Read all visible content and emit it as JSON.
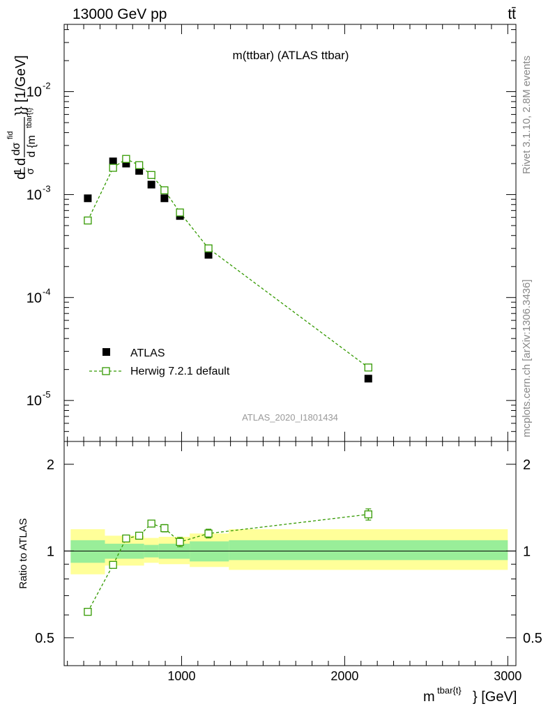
{
  "header": {
    "left": "13000 GeV pp",
    "right": "tt̄"
  },
  "side_text": {
    "top": "Rivet 3.1.10,  2.8M events",
    "bottom": "mcplots.cern.ch [arXiv:1306.3436]"
  },
  "analysis_id": "ATLAS_2020_I1801434",
  "chart_data": [
    {
      "panel": "main",
      "type": "scatter",
      "title": "m(ttbar) (ATLAS ttbar)",
      "ylabel": "1/σ dσ^fid/d{m^tbar{t}} [1/GeV]",
      "ylabel_parts": {
        "pre": "d",
        "one": "1",
        "sigma": "σ",
        "d2": "d",
        "dsigma": "dσ",
        "fid": "fid",
        "dm": "d {m",
        "sub": "tbar{t}",
        "post": "}} [1/GeV]"
      },
      "xlim": [
        280,
        3050
      ],
      "ylim": [
        4e-06,
        0.045
      ],
      "yscale": "log",
      "ytick_labels": [
        {
          "base": "10",
          "exp": "-5"
        },
        {
          "base": "10",
          "exp": "-4"
        },
        {
          "base": "10",
          "exp": "-3"
        },
        {
          "base": "10",
          "exp": "-2"
        }
      ],
      "legend_position": "lower-left",
      "series": [
        {
          "name": "ATLAS",
          "color": "#000000",
          "marker": "filled-square",
          "x": [
            425,
            580,
            660,
            740,
            815,
            895,
            990,
            1165,
            2145
          ],
          "y": [
            0.00092,
            0.0021,
            0.002,
            0.0017,
            0.00125,
            0.00092,
            0.00062,
            0.00026,
            1.63e-05
          ]
        },
        {
          "name": "Herwig 7.2.1 default",
          "color": "#339900",
          "marker": "open-square",
          "linestyle": "dashed",
          "x": [
            425,
            580,
            660,
            740,
            815,
            895,
            990,
            1165,
            2145
          ],
          "y": [
            0.00056,
            0.00182,
            0.00222,
            0.00193,
            0.00155,
            0.0011,
            0.00067,
            0.0003,
            2.09e-05
          ]
        }
      ]
    },
    {
      "panel": "ratio",
      "type": "scatter",
      "ylabel": "Ratio to ATLAS",
      "xlabel": "m^{tbar{t}} [GeV]",
      "xlabel_parts": {
        "base": "m",
        "sup": "tbar{t}",
        "post": "} [GeV]"
      },
      "xlim": [
        280,
        3050
      ],
      "ylim": [
        0.4,
        2.4
      ],
      "yscale": "log",
      "ytick_labels": [
        "0.5",
        "1",
        "2"
      ],
      "xtick_labels": [
        "1000",
        "2000",
        "3000"
      ],
      "bands": {
        "edges": [
          320,
          530,
          770,
          860,
          1050,
          1290,
          3000
        ],
        "inner_lo": [
          0.91,
          0.94,
          0.95,
          0.94,
          0.92,
          0.93
        ],
        "inner_hi": [
          1.09,
          1.06,
          1.05,
          1.06,
          1.08,
          1.09
        ],
        "outer_lo": [
          0.83,
          0.89,
          0.91,
          0.9,
          0.88,
          0.86
        ],
        "outer_hi": [
          1.19,
          1.13,
          1.11,
          1.12,
          1.15,
          1.19
        ],
        "inner_color": "#99ee99",
        "outer_color": "#ffff99"
      },
      "series": [
        {
          "name": "Herwig 7.2.1 default",
          "color": "#339900",
          "marker": "open-square",
          "linestyle": "dashed",
          "x": [
            425,
            580,
            660,
            740,
            815,
            895,
            990,
            1165,
            2145
          ],
          "y": [
            0.615,
            0.895,
            1.105,
            1.13,
            1.245,
            1.2,
            1.075,
            1.15,
            1.34
          ],
          "yerr": [
            0.015,
            0.02,
            0.02,
            0.02,
            0.03,
            0.035,
            0.04,
            0.04,
            0.06
          ]
        }
      ]
    }
  ]
}
